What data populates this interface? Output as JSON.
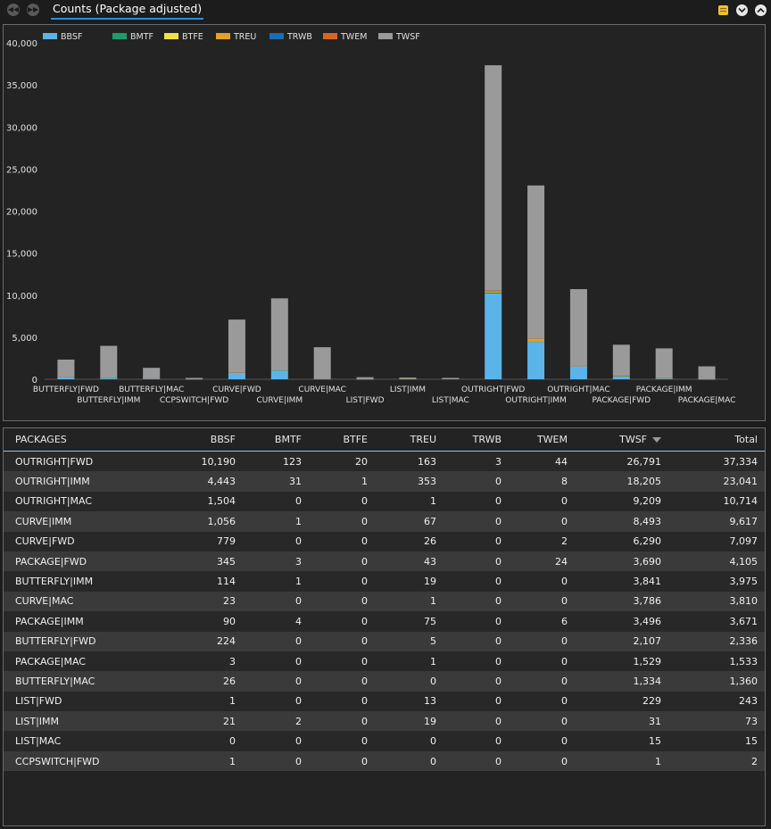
{
  "header": {
    "title": "Counts (Package adjusted)",
    "icons": [
      "back-icon",
      "forward-icon",
      "scroll-icon",
      "collapse-icon",
      "minimize-icon"
    ]
  },
  "colors": {
    "BBSF": "#5ab4ea",
    "BMTF": "#1a9e6e",
    "BTFE": "#f0e040",
    "TREU": "#e8a020",
    "TRWB": "#1a6eb4",
    "TWEM": "#d9661a",
    "TWSF": "#9a9a9a",
    "accent": "#2f8fd8"
  },
  "chart_data": {
    "type": "bar",
    "stacked": true,
    "ylim": [
      0,
      40000
    ],
    "yticks": [
      "0",
      "5,000",
      "10,000",
      "15,000",
      "20,000",
      "25,000",
      "30,000",
      "35,000",
      "40,000"
    ],
    "legend_position": "top-left",
    "categories": [
      "BUTTERFLY|FWD",
      "BUTTERFLY|IMM",
      "BUTTERFLY|MAC",
      "CCPSWITCH|FWD",
      "CURVE|FWD",
      "CURVE|IMM",
      "CURVE|MAC",
      "LIST|FWD",
      "LIST|IMM",
      "LIST|MAC",
      "OUTRIGHT|FWD",
      "OUTRIGHT|IMM",
      "OUTRIGHT|MAC",
      "PACKAGE|FWD",
      "PACKAGE|IMM",
      "PACKAGE|MAC"
    ],
    "series": [
      {
        "name": "BBSF",
        "values": [
          224,
          114,
          26,
          1,
          779,
          1056,
          23,
          1,
          21,
          0,
          10190,
          4443,
          1504,
          345,
          90,
          3
        ]
      },
      {
        "name": "BMTF",
        "values": [
          0,
          1,
          0,
          0,
          0,
          1,
          0,
          0,
          2,
          0,
          123,
          31,
          0,
          3,
          4,
          0
        ]
      },
      {
        "name": "BTFE",
        "values": [
          0,
          0,
          0,
          0,
          0,
          0,
          0,
          0,
          0,
          0,
          20,
          1,
          0,
          0,
          0,
          0
        ]
      },
      {
        "name": "TREU",
        "values": [
          5,
          19,
          0,
          0,
          26,
          67,
          1,
          13,
          19,
          0,
          163,
          353,
          1,
          43,
          75,
          1
        ]
      },
      {
        "name": "TRWB",
        "values": [
          0,
          0,
          0,
          0,
          0,
          0,
          0,
          0,
          0,
          0,
          3,
          0,
          0,
          0,
          0,
          0
        ]
      },
      {
        "name": "TWEM",
        "values": [
          0,
          0,
          0,
          0,
          2,
          0,
          0,
          0,
          0,
          0,
          44,
          8,
          0,
          24,
          6,
          0
        ]
      },
      {
        "name": "TWSF",
        "values": [
          2107,
          3841,
          1334,
          1,
          6290,
          8493,
          3786,
          229,
          31,
          15,
          26791,
          18205,
          9209,
          3690,
          3496,
          1529
        ]
      }
    ]
  },
  "table": {
    "columns": [
      "PACKAGES",
      "BBSF",
      "BMTF",
      "BTFE",
      "TREU",
      "TRWB",
      "TWEM",
      "TWSF",
      "Total"
    ],
    "sorted_column": "TWSF",
    "rows": [
      [
        "OUTRIGHT|FWD",
        "10,190",
        "123",
        "20",
        "163",
        "3",
        "44",
        "26,791",
        "37,334"
      ],
      [
        "OUTRIGHT|IMM",
        "4,443",
        "31",
        "1",
        "353",
        "0",
        "8",
        "18,205",
        "23,041"
      ],
      [
        "OUTRIGHT|MAC",
        "1,504",
        "0",
        "0",
        "1",
        "0",
        "0",
        "9,209",
        "10,714"
      ],
      [
        "CURVE|IMM",
        "1,056",
        "1",
        "0",
        "67",
        "0",
        "0",
        "8,493",
        "9,617"
      ],
      [
        "CURVE|FWD",
        "779",
        "0",
        "0",
        "26",
        "0",
        "2",
        "6,290",
        "7,097"
      ],
      [
        "PACKAGE|FWD",
        "345",
        "3",
        "0",
        "43",
        "0",
        "24",
        "3,690",
        "4,105"
      ],
      [
        "BUTTERFLY|IMM",
        "114",
        "1",
        "0",
        "19",
        "0",
        "0",
        "3,841",
        "3,975"
      ],
      [
        "CURVE|MAC",
        "23",
        "0",
        "0",
        "1",
        "0",
        "0",
        "3,786",
        "3,810"
      ],
      [
        "PACKAGE|IMM",
        "90",
        "4",
        "0",
        "75",
        "0",
        "6",
        "3,496",
        "3,671"
      ],
      [
        "BUTTERFLY|FWD",
        "224",
        "0",
        "0",
        "5",
        "0",
        "0",
        "2,107",
        "2,336"
      ],
      [
        "PACKAGE|MAC",
        "3",
        "0",
        "0",
        "1",
        "0",
        "0",
        "1,529",
        "1,533"
      ],
      [
        "BUTTERFLY|MAC",
        "26",
        "0",
        "0",
        "0",
        "0",
        "0",
        "1,334",
        "1,360"
      ],
      [
        "LIST|FWD",
        "1",
        "0",
        "0",
        "13",
        "0",
        "0",
        "229",
        "243"
      ],
      [
        "LIST|IMM",
        "21",
        "2",
        "0",
        "19",
        "0",
        "0",
        "31",
        "73"
      ],
      [
        "LIST|MAC",
        "0",
        "0",
        "0",
        "0",
        "0",
        "0",
        "15",
        "15"
      ],
      [
        "CCPSWITCH|FWD",
        "1",
        "0",
        "0",
        "0",
        "0",
        "0",
        "1",
        "2"
      ]
    ]
  }
}
